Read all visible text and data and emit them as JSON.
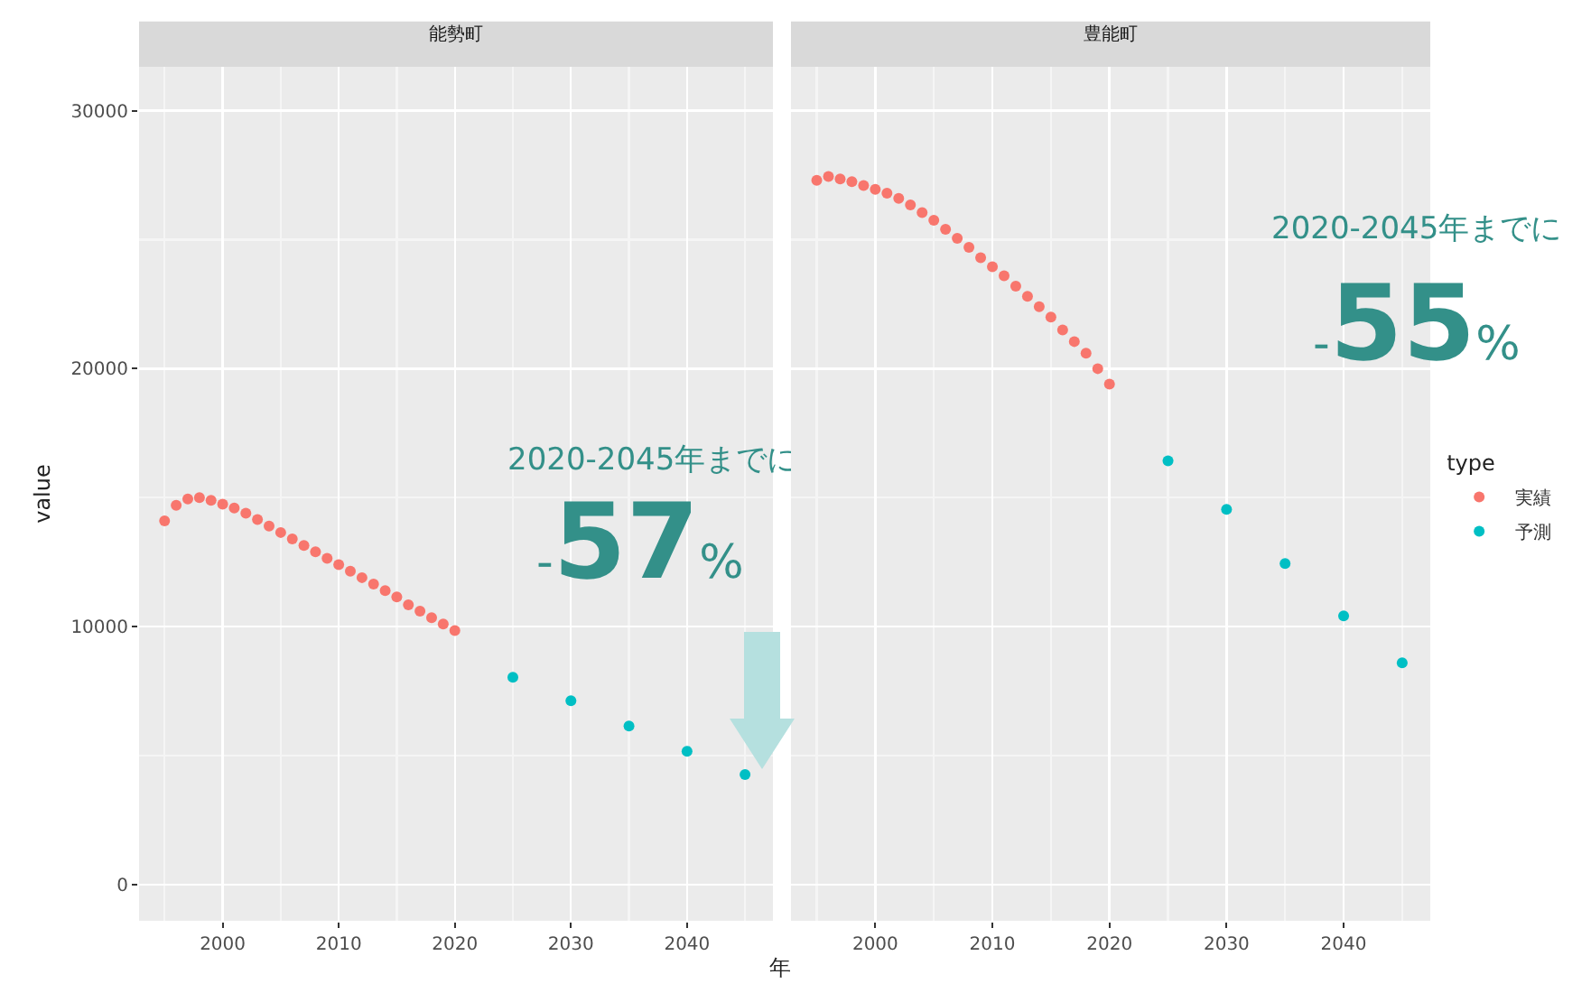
{
  "chart_data": [
    {
      "type": "scatter",
      "title": "能勢町",
      "xlabel": "年",
      "ylabel": "value",
      "xlim": [
        1992.8,
        2047.4
      ],
      "xticks": [
        2000,
        2010,
        2020,
        2030,
        2040
      ],
      "ylim": [
        -1400,
        31700
      ],
      "yticks": [
        0,
        10000,
        20000,
        30000
      ],
      "grid": true,
      "marker": "circle",
      "annotations": [
        "2020-2045年までに",
        "-57%"
      ],
      "series": [
        {
          "color": "#f8766d",
          "x": [
            1995,
            1996,
            1997,
            1998,
            1999,
            2000,
            2001,
            2002,
            2003,
            2004,
            2005,
            2006,
            2007,
            2008,
            2009,
            2010,
            2011,
            2012,
            2013,
            2014,
            2015,
            2016,
            2017,
            2018,
            2019,
            2020
          ],
          "values": [
            14100,
            14700,
            14950,
            15000,
            14900,
            14750,
            14600,
            14400,
            14150,
            13900,
            13650,
            13400,
            13150,
            12900,
            12650,
            12400,
            12150,
            11900,
            11650,
            11400,
            11150,
            10850,
            10600,
            10350,
            10100,
            9850
          ]
        },
        {
          "color": "#00bfc4",
          "x": [
            2025,
            2030,
            2035,
            2040,
            2045
          ],
          "values": [
            8040,
            7130,
            6150,
            5170,
            4270
          ]
        }
      ]
    },
    {
      "type": "scatter",
      "title": "豊能町",
      "xlim": [
        1992.8,
        2047.4
      ],
      "xticks": [
        2000,
        2010,
        2020,
        2030,
        2040
      ],
      "ylim": [
        -1400,
        31700
      ],
      "yticks": [
        0,
        10000,
        20000,
        30000
      ],
      "tick_labels": "x",
      "grid": true,
      "marker": "circle",
      "legend": "right",
      "legend_title": "type",
      "annotations": [
        "2020-2045年までに",
        "-55%"
      ],
      "series": [
        {
          "name": "実績",
          "color": "#f8766d",
          "x": [
            1995,
            1996,
            1997,
            1998,
            1999,
            2000,
            2001,
            2002,
            2003,
            2004,
            2005,
            2006,
            2007,
            2008,
            2009,
            2010,
            2011,
            2012,
            2013,
            2014,
            2015,
            2016,
            2017,
            2018,
            2019,
            2020
          ],
          "values": [
            27300,
            27450,
            27350,
            27250,
            27100,
            26950,
            26800,
            26600,
            26350,
            26050,
            25750,
            25400,
            25050,
            24700,
            24300,
            23950,
            23600,
            23200,
            22800,
            22400,
            22000,
            21500,
            21050,
            20600,
            20000,
            19400
          ]
        },
        {
          "name": "予測",
          "color": "#00bfc4",
          "x": [
            2025,
            2030,
            2035,
            2040,
            2045
          ],
          "values": [
            16430,
            14550,
            12450,
            10420,
            8600
          ]
        }
      ]
    }
  ]
}
